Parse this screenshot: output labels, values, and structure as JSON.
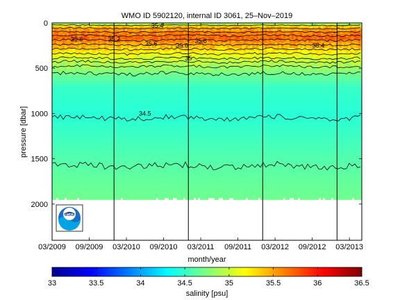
{
  "chart_data": {
    "type": "heatmap",
    "title": "WMO ID 5902120, internal ID 3061, 25–Nov–2019",
    "xlabel": "month/year",
    "ylabel": "pressure [dbar]",
    "colorbar_label": "salinity [psu]",
    "x_range": [
      "2009-03",
      "2013-05"
    ],
    "ylim": [
      0,
      2400
    ],
    "y_reversed": true,
    "x_ticks": [
      {
        "date": "2009-03",
        "label": "03/2009"
      },
      {
        "date": "2009-09",
        "label": "09/2009"
      },
      {
        "date": "2010-03",
        "label": "03/2010"
      },
      {
        "date": "2010-09",
        "label": "09/2010"
      },
      {
        "date": "2011-03",
        "label": "03/2011"
      },
      {
        "date": "2011-09",
        "label": "09/2011"
      },
      {
        "date": "2012-03",
        "label": "03/2012"
      },
      {
        "date": "2012-09",
        "label": "09/2012"
      },
      {
        "date": "2013-03",
        "label": "03/2013"
      }
    ],
    "y_ticks": [
      0,
      500,
      1000,
      1500,
      2000
    ],
    "colorbar_range": [
      33,
      36.5
    ],
    "colorbar_ticks": [
      33,
      33.5,
      34,
      34.5,
      35,
      35.5,
      36,
      36.5
    ],
    "colormap": "jet",
    "year_markers": [
      "2010-01",
      "2011-01",
      "2012-01",
      "2013-01"
    ],
    "salinity_profile": [
      {
        "pressure": 0,
        "salinity": 34.9
      },
      {
        "pressure": 30,
        "salinity": 35.4
      },
      {
        "pressure": 80,
        "salinity": 35.6
      },
      {
        "pressure": 150,
        "salinity": 35.7
      },
      {
        "pressure": 250,
        "salinity": 35.4
      },
      {
        "pressure": 350,
        "salinity": 35.1
      },
      {
        "pressure": 450,
        "salinity": 34.9
      },
      {
        "pressure": 550,
        "salinity": 34.7
      },
      {
        "pressure": 700,
        "salinity": 34.5
      },
      {
        "pressure": 1000,
        "salinity": 34.45
      },
      {
        "pressure": 1500,
        "salinity": 34.6
      },
      {
        "pressure": 1950,
        "salinity": 34.7
      }
    ],
    "data_bottom_pressure": 1950,
    "contour_labels": [
      {
        "text": "34.5",
        "date": "2010-06",
        "pressure": 1000
      },
      {
        "text": "35.6",
        "date": "2010-07",
        "pressure": 230
      },
      {
        "text": "35.4",
        "date": "2010-08",
        "pressure": 30
      },
      {
        "text": "35.6",
        "date": "2009-07",
        "pressure": 180
      },
      {
        "text": "35.2",
        "date": "2010-01",
        "pressure": 180
      },
      {
        "text": "35.6",
        "date": "2010-12",
        "pressure": 250
      },
      {
        "text": "35",
        "date": "2011-01",
        "pressure": 390
      },
      {
        "text": "35.6",
        "date": "2011-03",
        "pressure": 200
      },
      {
        "text": "35.4",
        "date": "2012-10",
        "pressure": 250
      }
    ],
    "logo": "noaa-logo"
  }
}
